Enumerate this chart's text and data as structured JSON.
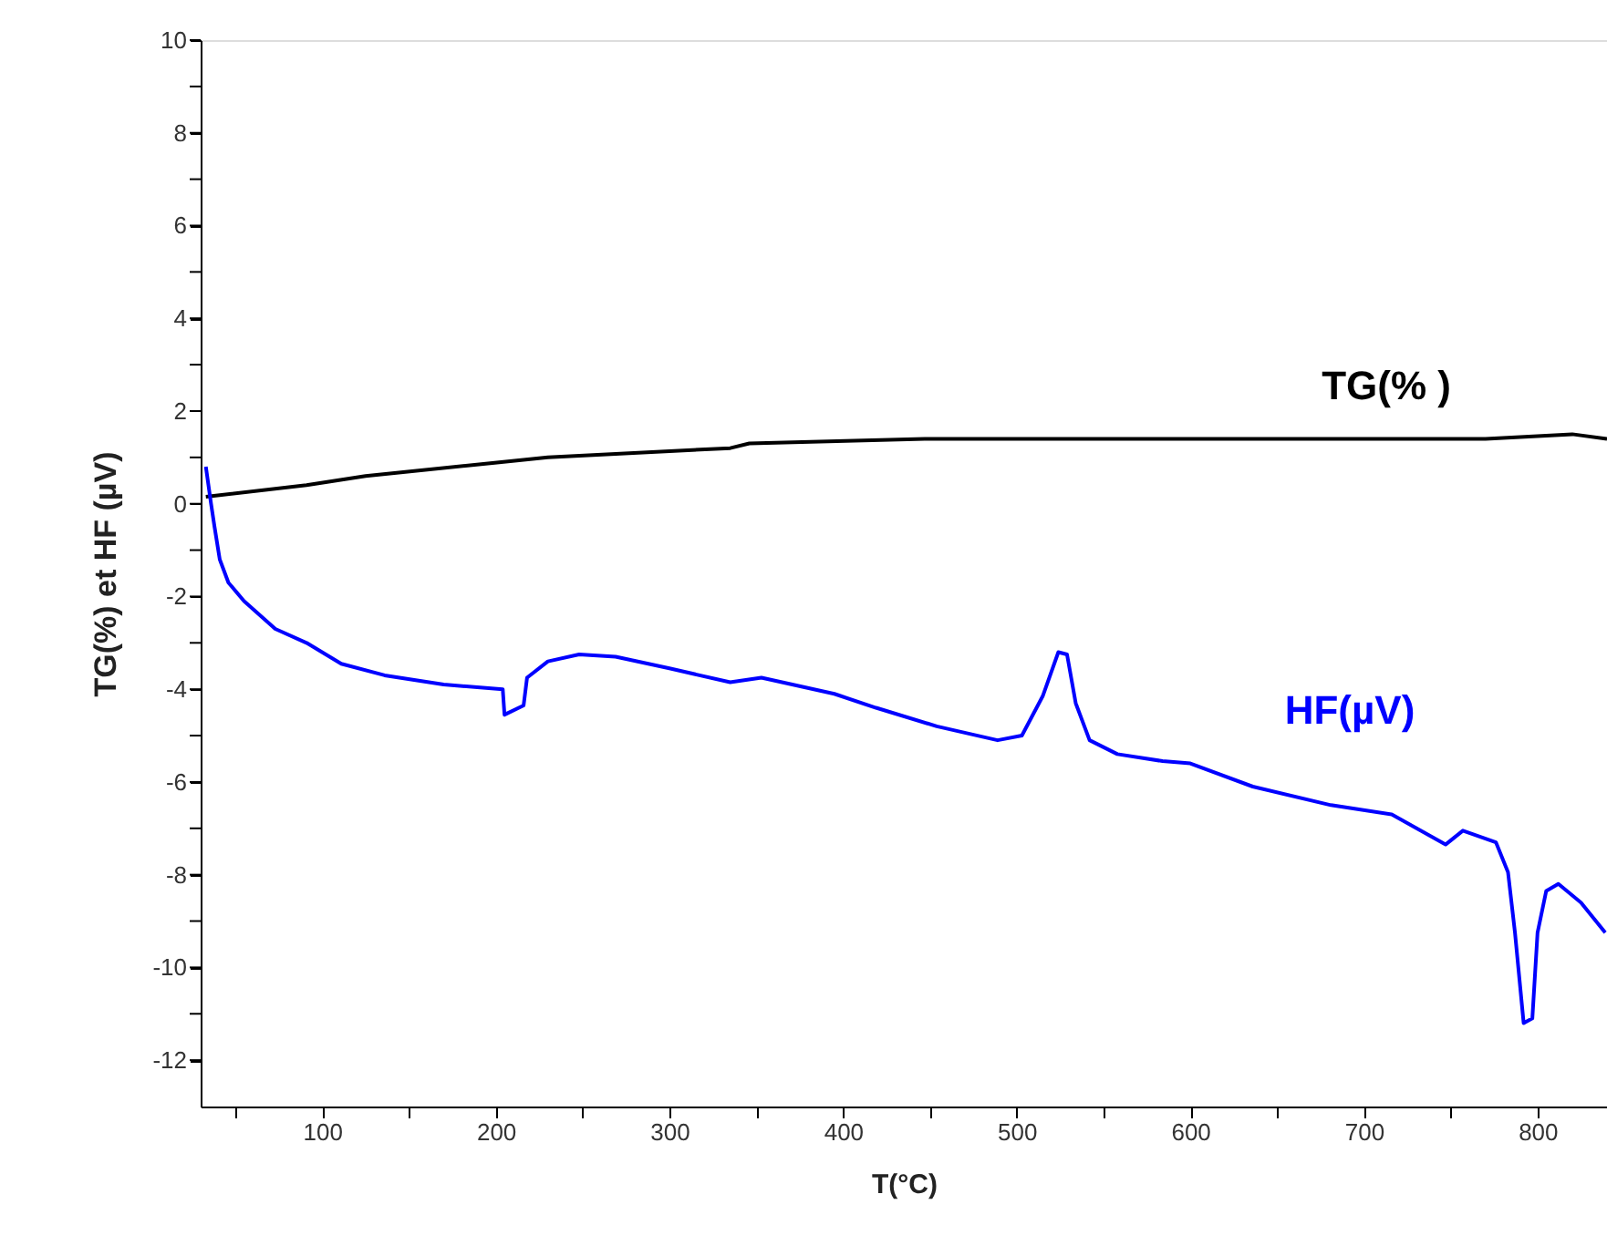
{
  "chart_data": {
    "type": "line",
    "xlabel": "T(°C)",
    "ylabel": "TG(%) et  HF (µV)",
    "xlim": [
      30,
      840
    ],
    "ylim": [
      -13,
      10
    ],
    "xticks": [
      {
        "value": 50,
        "label": null
      },
      100,
      {
        "value": 150,
        "label": null
      },
      200,
      {
        "value": 250,
        "label": null
      },
      300,
      {
        "value": 350,
        "label": null
      },
      400,
      {
        "value": 450,
        "label": null
      },
      500,
      {
        "value": 550,
        "label": null
      },
      600,
      {
        "value": 650,
        "label": null
      },
      700,
      {
        "value": 750,
        "label": null
      },
      800
    ],
    "yticks": [
      -12,
      {
        "value": -11,
        "label": null
      },
      -10,
      {
        "value": -9,
        "label": null
      },
      -8,
      {
        "value": -7,
        "label": null
      },
      -6,
      {
        "value": -5,
        "label": null
      },
      -4,
      {
        "value": -3,
        "label": null
      },
      -2,
      {
        "value": -1,
        "label": null
      },
      0,
      {
        "value": 1,
        "label": null
      },
      2,
      {
        "value": 3,
        "label": null
      },
      4,
      {
        "value": 5,
        "label": null
      },
      6,
      {
        "value": 7,
        "label": null
      },
      8,
      {
        "value": 9,
        "label": null
      },
      10
    ],
    "grid": false,
    "marker": "none",
    "line_style": "solid",
    "series": [
      {
        "name": "TG(% )",
        "color": "#000000",
        "x": [
          33,
          91,
          125,
          230,
          335,
          346,
          447,
          587,
          770,
          820,
          840
        ],
        "values": [
          0.15,
          0.4,
          0.6,
          1.0,
          1.2,
          1.3,
          1.4,
          1.4,
          1.4,
          1.5,
          1.4
        ]
      },
      {
        "name": "HF(µV)",
        "color": "#0000ff",
        "x": [
          33,
          36,
          38,
          41,
          46,
          55,
          73,
          91,
          111,
          136,
          170,
          204,
          205,
          216,
          218,
          230,
          248,
          269,
          300,
          335,
          353,
          395,
          419,
          454,
          489,
          503,
          515,
          524,
          529,
          534,
          542,
          558,
          584,
          600,
          636,
          681,
          716,
          747,
          757,
          776,
          783,
          787,
          792,
          797,
          800,
          805,
          812,
          825,
          839
        ],
        "values": [
          0.8,
          0.0,
          -0.5,
          -1.2,
          -1.7,
          -2.1,
          -2.7,
          -3.0,
          -3.45,
          -3.7,
          -3.9,
          -4.0,
          -4.55,
          -4.35,
          -3.75,
          -3.4,
          -3.25,
          -3.3,
          -3.55,
          -3.85,
          -3.75,
          -4.1,
          -4.4,
          -4.8,
          -5.1,
          -5.0,
          -4.15,
          -3.2,
          -3.25,
          -4.3,
          -5.1,
          -5.4,
          -5.55,
          -5.6,
          -6.1,
          -6.5,
          -6.7,
          -7.35,
          -7.05,
          -7.3,
          -7.95,
          -9.25,
          -11.2,
          -11.1,
          -9.25,
          -8.35,
          -8.2,
          -8.6,
          -9.25
        ]
      }
    ]
  }
}
